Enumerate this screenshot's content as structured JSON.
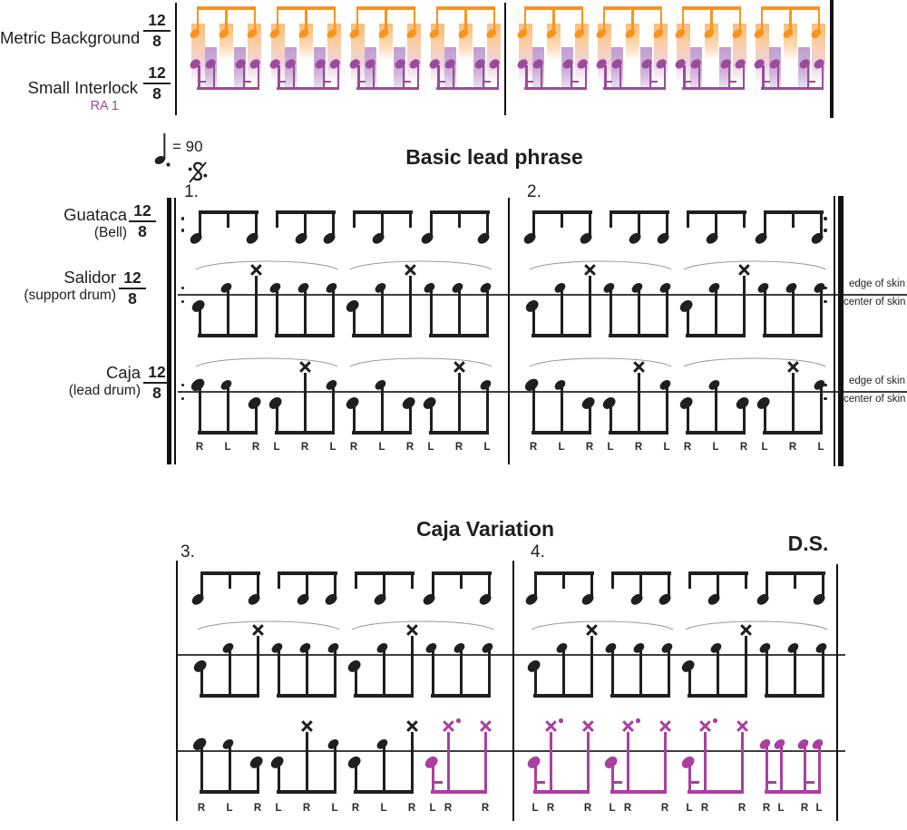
{
  "colors": {
    "orange": "#F7941E",
    "interlock_purple": "#9B4B9D",
    "variation_purple": "#AA3FA0",
    "notation_black": "#1F1F1F",
    "staff_gray": "#3D3D3D",
    "arc_gray": "#9A9A9A",
    "label_purple": "#A04A9E",
    "sticking_color": "#2A2A2A"
  },
  "time_signature": {
    "numerator": "12",
    "denominator": "8"
  },
  "top_strip": {
    "metric_row_label": "Metric Background",
    "interlock_row_label": "Small Interlock",
    "interlock_row_sublabel": "RA 1",
    "measures": 2,
    "cells_per_measure": 4,
    "orange_pulses_per_cell": 3,
    "purple_pulses_per_cell": 4
  },
  "tempo": {
    "equals_text": "= 90",
    "note_icon": "dotted-quarter-note"
  },
  "segno_icon": "segno",
  "basic_section": {
    "title": "Basic lead phrase",
    "measure_numbers": [
      "1.",
      "2."
    ],
    "bell_row": {
      "label": "Guataca",
      "sublabel": "(Bell)",
      "measures": [
        [
          [
            "N",
            "t",
            "N"
          ],
          [
            "t",
            "N",
            "N"
          ],
          [
            "t",
            "N",
            "t"
          ],
          [
            "N",
            "t",
            "N"
          ]
        ],
        [
          [
            "N",
            "t",
            "N"
          ],
          [
            "t",
            "N",
            "N"
          ],
          [
            "t",
            "N",
            "t"
          ],
          [
            "N",
            "t",
            "N"
          ]
        ]
      ]
    },
    "salidor_row": {
      "label": "Salidor",
      "sublabel": "(support drum)",
      "edge_label": "edge of skin",
      "center_label": "center of skin",
      "measures": [
        [
          [
            "C",
            "E",
            "X"
          ],
          [
            "E",
            "E",
            "E"
          ],
          [
            "C",
            "E",
            "X"
          ],
          [
            "E",
            "E",
            "E"
          ]
        ],
        [
          [
            "C",
            "E",
            "X"
          ],
          [
            "E",
            "E",
            "E"
          ],
          [
            "C",
            "E",
            "X"
          ],
          [
            "E",
            "E",
            "E"
          ]
        ]
      ]
    },
    "caja_row": {
      "label": "Caja",
      "sublabel": "(lead drum)",
      "edge_label": "edge of skin",
      "center_label": "center of skin",
      "measures": [
        {
          "beats": [
            {
              "notes": [
                "E",
                "E",
                "C"
              ],
              "sticking": [
                "R",
                "L",
                "R"
              ],
              "color": "black",
              "figure": "triplet"
            },
            {
              "notes": [
                "C",
                "X",
                "E"
              ],
              "sticking": [
                "L",
                "R",
                "L"
              ],
              "color": "black",
              "figure": "triplet"
            },
            {
              "notes": [
                "C",
                "E",
                "C"
              ],
              "sticking": [
                "R",
                "L",
                "R"
              ],
              "color": "black",
              "figure": "triplet"
            },
            {
              "notes": [
                "C",
                "X",
                "E"
              ],
              "sticking": [
                "L",
                "R",
                "L"
              ],
              "color": "black",
              "figure": "triplet"
            }
          ]
        },
        {
          "beats": [
            {
              "notes": [
                "E",
                "E",
                "C"
              ],
              "sticking": [
                "R",
                "L",
                "R"
              ],
              "color": "black",
              "figure": "triplet"
            },
            {
              "notes": [
                "C",
                "X",
                "E"
              ],
              "sticking": [
                "L",
                "R",
                "L"
              ],
              "color": "black",
              "figure": "triplet"
            },
            {
              "notes": [
                "C",
                "E",
                "C"
              ],
              "sticking": [
                "R",
                "L",
                "R"
              ],
              "color": "black",
              "figure": "triplet"
            },
            {
              "notes": [
                "C",
                "X",
                "E"
              ],
              "sticking": [
                "L",
                "R",
                "L"
              ],
              "color": "black",
              "figure": "triplet"
            }
          ]
        }
      ]
    }
  },
  "variation_section": {
    "title": "Caja Variation",
    "measure_numbers": [
      "3.",
      "4."
    ],
    "ds_label": "D.S.",
    "bell_measures": [
      [
        [
          "N",
          "t",
          "N"
        ],
        [
          "t",
          "N",
          "N"
        ],
        [
          "t",
          "N",
          "t"
        ],
        [
          "N",
          "t",
          "N"
        ]
      ],
      [
        [
          "N",
          "t",
          "N"
        ],
        [
          "t",
          "N",
          "N"
        ],
        [
          "t",
          "N",
          "t"
        ],
        [
          "N",
          "t",
          "N"
        ]
      ]
    ],
    "salidor_measures": [
      [
        [
          "C",
          "E",
          "X"
        ],
        [
          "E",
          "E",
          "E"
        ],
        [
          "C",
          "E",
          "X"
        ],
        [
          "E",
          "E",
          "E"
        ]
      ],
      [
        [
          "C",
          "E",
          "X"
        ],
        [
          "E",
          "E",
          "E"
        ],
        [
          "C",
          "E",
          "X"
        ],
        [
          "E",
          "E",
          "E"
        ]
      ]
    ],
    "caja_measures": [
      {
        "beats": [
          {
            "notes": [
              "E",
              "E",
              "C"
            ],
            "sticking": [
              "R",
              "L",
              "R"
            ],
            "color": "black",
            "figure": "triplet"
          },
          {
            "notes": [
              "C",
              "X",
              "E"
            ],
            "sticking": [
              "L",
              "R",
              "L"
            ],
            "color": "black",
            "figure": "triplet"
          },
          {
            "notes": [
              "C",
              "E",
              "X"
            ],
            "sticking": [
              "R",
              "L",
              "R"
            ],
            "color": "black",
            "figure": "triplet"
          },
          {
            "notes": [
              "C",
              "Xd",
              "X"
            ],
            "sticking": [
              "L",
              "R",
              "R"
            ],
            "color": "purple",
            "figure": "pickup"
          }
        ]
      },
      {
        "beats": [
          {
            "notes": [
              "C",
              "Xd",
              "X"
            ],
            "sticking": [
              "L",
              "R",
              "R"
            ],
            "color": "purple",
            "figure": "pickup"
          },
          {
            "notes": [
              "C",
              "Xd",
              "X"
            ],
            "sticking": [
              "L",
              "R",
              "R"
            ],
            "color": "purple",
            "figure": "pickup"
          },
          {
            "notes": [
              "C",
              "Xd",
              "X"
            ],
            "sticking": [
              "L",
              "R",
              "R"
            ],
            "color": "purple",
            "figure": "pickup"
          },
          {
            "notes": [
              "E",
              "E",
              "E",
              "E"
            ],
            "sticking": [
              "R",
              "L",
              "R",
              "L"
            ],
            "color": "purple",
            "figure": "interlock4"
          }
        ]
      }
    ]
  }
}
